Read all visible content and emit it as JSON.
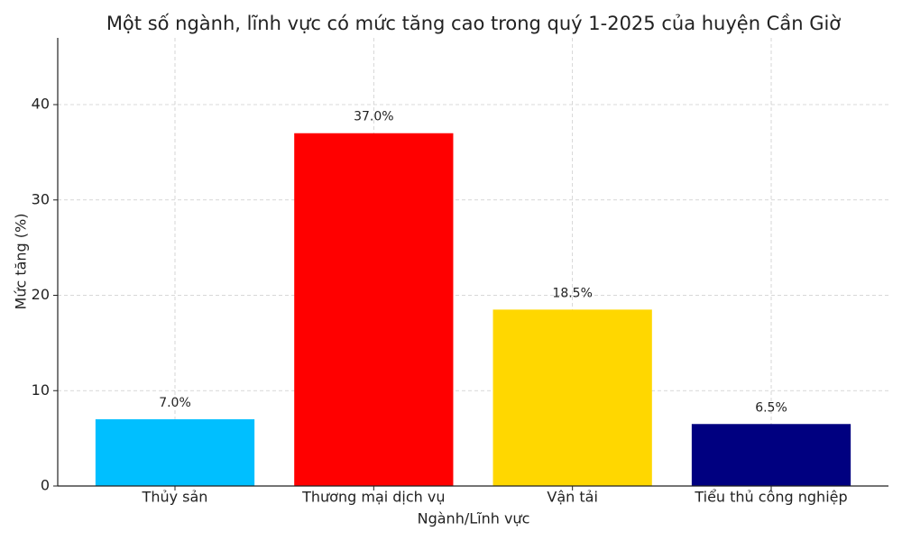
{
  "chart_data": {
    "type": "bar",
    "title": "Một số ngành, lĩnh vực có mức tăng cao trong quý 1-2025 của huyện Cần Giờ",
    "x_label": "Ngành/Lĩnh vực",
    "y_label": "Mức tăng (%)",
    "categories": [
      "Thủy sản",
      "Thương mại dịch vụ",
      "Vận tải",
      "Tiểu thủ công nghiệp"
    ],
    "values": [
      7.0,
      37.0,
      18.5,
      6.5
    ],
    "value_labels": [
      "7.0%",
      "37.0%",
      "18.5%",
      "6.5%"
    ],
    "colors": [
      "#00bfff",
      "#ff0000",
      "#ffd700",
      "#000080"
    ],
    "ylim": [
      0,
      47
    ],
    "yticks": [
      0,
      10,
      20,
      30,
      40
    ],
    "grid": true
  }
}
